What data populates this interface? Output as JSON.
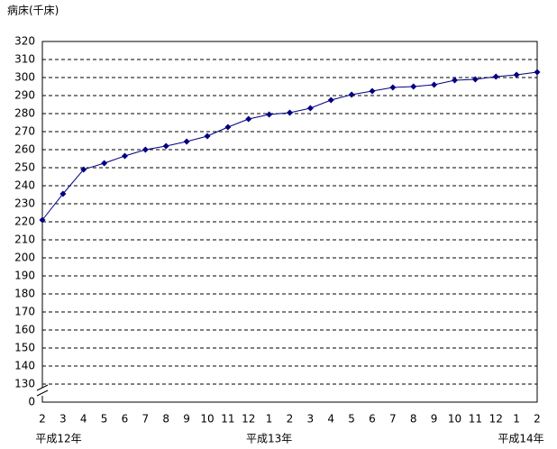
{
  "chart_data": {
    "type": "line",
    "y_label": "病床(千床)",
    "categories": [
      "2",
      "3",
      "4",
      "5",
      "6",
      "7",
      "8",
      "9",
      "10",
      "11",
      "12",
      "1",
      "2",
      "3",
      "4",
      "5",
      "6",
      "7",
      "8",
      "9",
      "10",
      "11",
      "12",
      "1",
      "2"
    ],
    "year_labels": [
      "平成12年",
      null,
      null,
      null,
      null,
      null,
      null,
      null,
      null,
      null,
      null,
      "平成13年",
      null,
      null,
      null,
      null,
      null,
      null,
      null,
      null,
      null,
      null,
      null,
      null,
      "平成14年"
    ],
    "values": [
      221,
      235.5,
      249,
      252.5,
      256.5,
      260,
      262,
      264.5,
      267.5,
      272.5,
      277,
      279.5,
      280.5,
      283,
      287.5,
      290.5,
      292.5,
      294.5,
      295,
      296,
      298.5,
      299,
      300.5,
      301.5,
      303
    ],
    "color": "#000080",
    "ylim": [
      0,
      320
    ],
    "ybreak": [
      0,
      120
    ],
    "yticks": [
      0,
      130,
      140,
      150,
      160,
      170,
      180,
      190,
      200,
      210,
      220,
      230,
      240,
      250,
      260,
      270,
      280,
      290,
      300,
      310,
      320
    ],
    "grid": true
  }
}
